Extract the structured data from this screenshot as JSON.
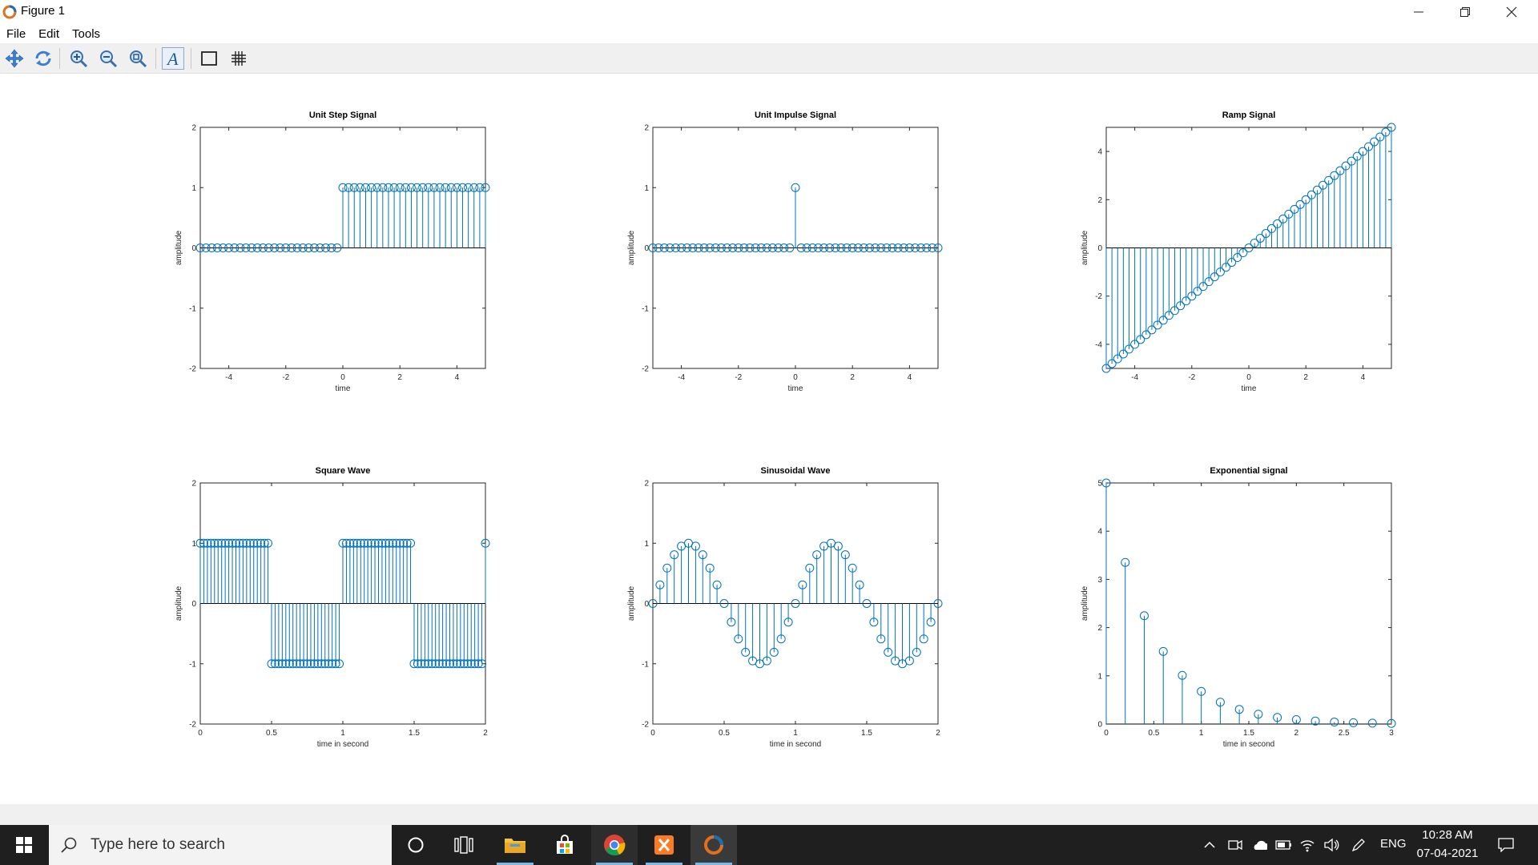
{
  "window": {
    "title": "Figure 1"
  },
  "menu": [
    "File",
    "Edit",
    "Tools"
  ],
  "toolbar_icons": [
    "pan-icon",
    "rotate-icon",
    "zoom-in-icon",
    "zoom-out-icon",
    "zoom-reset-icon",
    "text-insert-icon",
    "box-toggle-icon",
    "grid-toggle-icon"
  ],
  "accent_color": "#0072BD",
  "chart_data": [
    {
      "type": "stem",
      "title": "Unit Step Signal",
      "xlabel": "time",
      "ylabel": "amplitude",
      "xlim": [
        -5,
        5
      ],
      "ylim": [
        -2,
        2
      ],
      "xticks": [
        -4,
        -2,
        0,
        2,
        4
      ],
      "yticks": [
        -2,
        -1,
        0,
        1,
        2
      ],
      "x_range": [
        -5,
        5
      ],
      "x_step": 0.2,
      "rule": "1 for x >= 0, else 0"
    },
    {
      "type": "stem",
      "title": "Unit Impulse Signal",
      "xlabel": "time",
      "ylabel": "amplitude",
      "xlim": [
        -5,
        5
      ],
      "ylim": [
        -2,
        2
      ],
      "xticks": [
        -4,
        -2,
        0,
        2,
        4
      ],
      "yticks": [
        -2,
        -1,
        0,
        1,
        2
      ],
      "x_range": [
        -5,
        5
      ],
      "x_step": 0.2,
      "rule": "1 at x = 0, else 0"
    },
    {
      "type": "stem",
      "title": "Ramp Signal",
      "xlabel": "time",
      "ylabel": "amplitude",
      "xlim": [
        -5,
        5
      ],
      "ylim": [
        -5,
        5
      ],
      "xticks": [
        -4,
        -2,
        0,
        2,
        4
      ],
      "yticks": [
        -4,
        -2,
        0,
        2,
        4
      ],
      "x_range": [
        -5,
        5
      ],
      "x_step": 0.2,
      "rule": "y = x"
    },
    {
      "type": "stem",
      "title": "Square Wave",
      "xlabel": "time in second",
      "ylabel": "amplitude",
      "xlim": [
        0,
        2
      ],
      "ylim": [
        -2,
        2
      ],
      "xticks": [
        "0",
        "0.5",
        "1",
        "1.5",
        "2"
      ],
      "yticks": [
        -2,
        -1,
        0,
        1,
        2
      ],
      "x_range": [
        0,
        2
      ],
      "x_step": 0.025,
      "rule": "square wave, period 1 s, amplitude 1"
    },
    {
      "type": "stem",
      "title": "Sinusoidal Wave",
      "xlabel": "time in second",
      "ylabel": "amplitude",
      "xlim": [
        0,
        2
      ],
      "ylim": [
        -2,
        2
      ],
      "xticks": [
        "0",
        "0.5",
        "1",
        "1.5",
        "2"
      ],
      "yticks": [
        -2,
        -1,
        0,
        1,
        2
      ],
      "x_range": [
        0,
        2
      ],
      "x_step": 0.05,
      "rule": "y = sin(2*pi*t)"
    },
    {
      "type": "stem",
      "title": "Exponential signal",
      "xlabel": "time in second",
      "ylabel": "amplitude",
      "xlim": [
        0,
        3
      ],
      "ylim": [
        0,
        5
      ],
      "xticks": [
        "0",
        "0.5",
        "1",
        "1.5",
        "2",
        "2.5",
        "3"
      ],
      "yticks": [
        0,
        1,
        2,
        3,
        4,
        5
      ],
      "x_range": [
        0,
        3
      ],
      "x_step": 0.2,
      "rule": "y = 5*exp(-2t)"
    }
  ],
  "taskbar": {
    "search_placeholder": "Type here to search",
    "language": "ENG",
    "time": "10:28 AM",
    "date": "07-04-2021"
  }
}
